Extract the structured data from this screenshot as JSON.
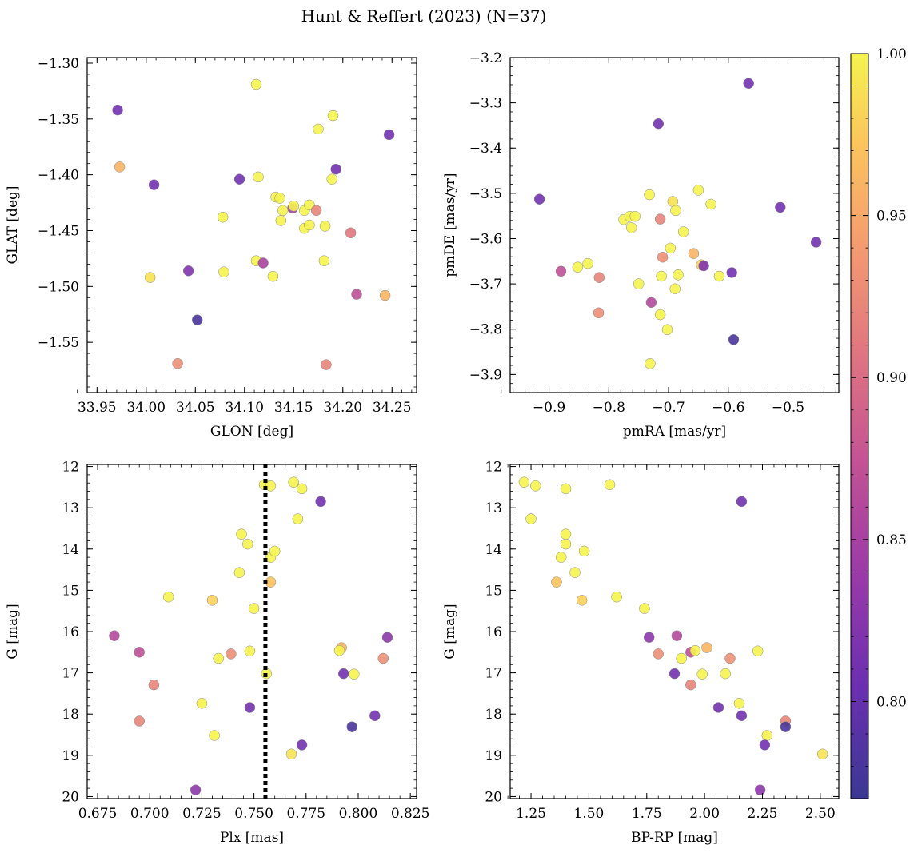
{
  "figure": {
    "title": "Hunt & Reffert (2023) (N=37)"
  },
  "colorbar": {
    "range": [
      0.77,
      1.0
    ],
    "ticks": [
      "0.80",
      "0.85",
      "0.90",
      "0.95",
      "1.00"
    ],
    "cmap": "plasma"
  },
  "chart_data": [
    {
      "type": "scatter",
      "xlabel": "GLON [deg]",
      "ylabel": "GLAT [deg]",
      "xlim": [
        33.94,
        34.275
      ],
      "ylim": [
        -1.595,
        -1.295
      ],
      "xticks": [
        "33.95",
        "34.00",
        "34.05",
        "34.10",
        "34.15",
        "34.20",
        "34.25"
      ],
      "yticks": [
        "-1.30",
        "-1.35",
        "-1.40",
        "-1.45",
        "-1.50",
        "-1.55"
      ],
      "points": [
        {
          "x": 33.971,
          "y": -1.342,
          "c": 0.81
        },
        {
          "x": 33.973,
          "y": -1.393,
          "c": 0.96
        },
        {
          "x": 34.008,
          "y": -1.409,
          "c": 0.81
        },
        {
          "x": 34.004,
          "y": -1.492,
          "c": 0.99
        },
        {
          "x": 34.043,
          "y": -1.486,
          "c": 0.82
        },
        {
          "x": 34.052,
          "y": -1.53,
          "c": 0.78
        },
        {
          "x": 34.032,
          "y": -1.569,
          "c": 0.93
        },
        {
          "x": 34.078,
          "y": -1.438,
          "c": 1.0
        },
        {
          "x": 34.079,
          "y": -1.487,
          "c": 1.0
        },
        {
          "x": 34.095,
          "y": -1.404,
          "c": 0.81
        },
        {
          "x": 34.112,
          "y": -1.319,
          "c": 1.0
        },
        {
          "x": 34.114,
          "y": -1.402,
          "c": 1.0
        },
        {
          "x": 34.112,
          "y": -1.477,
          "c": 1.0
        },
        {
          "x": 34.119,
          "y": -1.479,
          "c": 0.85
        },
        {
          "x": 34.129,
          "y": -1.491,
          "c": 1.0
        },
        {
          "x": 34.132,
          "y": -1.42,
          "c": 1.0
        },
        {
          "x": 34.136,
          "y": -1.421,
          "c": 1.0
        },
        {
          "x": 34.137,
          "y": -1.441,
          "c": 1.0
        },
        {
          "x": 34.139,
          "y": -1.432,
          "c": 1.0
        },
        {
          "x": 34.149,
          "y": -1.43,
          "c": 0.85
        },
        {
          "x": 34.15,
          "y": -1.428,
          "c": 1.0
        },
        {
          "x": 34.161,
          "y": -1.432,
          "c": 1.0
        },
        {
          "x": 34.161,
          "y": -1.448,
          "c": 1.0
        },
        {
          "x": 34.166,
          "y": -1.427,
          "c": 1.0
        },
        {
          "x": 34.166,
          "y": -1.445,
          "c": 1.0
        },
        {
          "x": 34.175,
          "y": -1.359,
          "c": 1.0
        },
        {
          "x": 34.173,
          "y": -1.432,
          "c": 0.92
        },
        {
          "x": 34.182,
          "y": -1.446,
          "c": 1.0
        },
        {
          "x": 34.181,
          "y": -1.477,
          "c": 1.0
        },
        {
          "x": 34.183,
          "y": -1.57,
          "c": 0.92
        },
        {
          "x": 34.19,
          "y": -1.347,
          "c": 1.0
        },
        {
          "x": 34.189,
          "y": -1.404,
          "c": 1.0
        },
        {
          "x": 34.193,
          "y": -1.395,
          "c": 0.81
        },
        {
          "x": 34.208,
          "y": -1.452,
          "c": 0.91
        },
        {
          "x": 34.214,
          "y": -1.507,
          "c": 0.87
        },
        {
          "x": 34.243,
          "y": -1.508,
          "c": 0.96
        },
        {
          "x": 34.247,
          "y": -1.364,
          "c": 0.81
        }
      ]
    },
    {
      "type": "scatter",
      "xlabel": "pmRA [mas/yr]",
      "ylabel": "pmDE [mas/yr]",
      "xlim": [
        -0.965,
        -0.415
      ],
      "ylim": [
        -3.94,
        -3.2
      ],
      "xticks": [
        "-0.9",
        "-0.8",
        "-0.7",
        "-0.6",
        "-0.5"
      ],
      "yticks": [
        "-3.2",
        "-3.3",
        "-3.4",
        "-3.5",
        "-3.6",
        "-3.7",
        "-3.8",
        "-3.9"
      ],
      "points": [
        {
          "x": -0.916,
          "y": -3.513,
          "c": 0.81
        },
        {
          "x": -0.88,
          "y": -3.672,
          "c": 0.87
        },
        {
          "x": -0.852,
          "y": -3.663,
          "c": 1.0
        },
        {
          "x": -0.835,
          "y": -3.655,
          "c": 1.0
        },
        {
          "x": -0.816,
          "y": -3.686,
          "c": 0.92
        },
        {
          "x": -0.817,
          "y": -3.764,
          "c": 0.93
        },
        {
          "x": -0.775,
          "y": -3.558,
          "c": 1.0
        },
        {
          "x": -0.765,
          "y": -3.551,
          "c": 1.0
        },
        {
          "x": -0.756,
          "y": -3.551,
          "c": 1.0
        },
        {
          "x": -0.762,
          "y": -3.576,
          "c": 1.0
        },
        {
          "x": -0.75,
          "y": -3.7,
          "c": 1.0
        },
        {
          "x": -0.732,
          "y": -3.503,
          "c": 1.0
        },
        {
          "x": -0.729,
          "y": -3.741,
          "c": 0.86
        },
        {
          "x": -0.731,
          "y": -3.876,
          "c": 1.0
        },
        {
          "x": -0.717,
          "y": -3.346,
          "c": 0.81
        },
        {
          "x": -0.714,
          "y": -3.557,
          "c": 0.92
        },
        {
          "x": -0.71,
          "y": -3.641,
          "c": 0.93
        },
        {
          "x": -0.712,
          "y": -3.683,
          "c": 1.0
        },
        {
          "x": -0.714,
          "y": -3.768,
          "c": 1.0
        },
        {
          "x": -0.702,
          "y": -3.801,
          "c": 1.0
        },
        {
          "x": -0.697,
          "y": -3.621,
          "c": 1.0
        },
        {
          "x": -0.693,
          "y": -3.518,
          "c": 0.99
        },
        {
          "x": -0.688,
          "y": -3.538,
          "c": 1.0
        },
        {
          "x": -0.689,
          "y": -3.711,
          "c": 1.0
        },
        {
          "x": -0.684,
          "y": -3.68,
          "c": 1.0
        },
        {
          "x": -0.675,
          "y": -3.585,
          "c": 1.0
        },
        {
          "x": -0.658,
          "y": -3.633,
          "c": 0.96
        },
        {
          "x": -0.65,
          "y": -3.493,
          "c": 1.0
        },
        {
          "x": -0.645,
          "y": -3.658,
          "c": 0.98
        },
        {
          "x": -0.641,
          "y": -3.66,
          "c": 0.82
        },
        {
          "x": -0.629,
          "y": -3.524,
          "c": 1.0
        },
        {
          "x": -0.615,
          "y": -3.683,
          "c": 1.0
        },
        {
          "x": -0.594,
          "y": -3.675,
          "c": 0.81
        },
        {
          "x": -0.591,
          "y": -3.823,
          "c": 0.78
        },
        {
          "x": -0.566,
          "y": -3.257,
          "c": 0.81
        },
        {
          "x": -0.513,
          "y": -3.531,
          "c": 0.81
        },
        {
          "x": -0.453,
          "y": -3.608,
          "c": 0.81
        }
      ]
    },
    {
      "type": "scatter",
      "xlabel": "Plx [mas]",
      "ylabel": "G [mag]",
      "xlim": [
        0.67,
        0.828
      ],
      "ylim": [
        20.05,
        11.95
      ],
      "yinverted": true,
      "xticks": [
        "0.675",
        "0.700",
        "0.725",
        "0.750",
        "0.775",
        "0.800",
        "0.825"
      ],
      "yticks": [
        "12",
        "13",
        "14",
        "15",
        "16",
        "17",
        "18",
        "19",
        "20"
      ],
      "vline": 0.7555,
      "points": [
        {
          "x": 0.683,
          "y": 16.1,
          "c": 0.86
        },
        {
          "x": 0.695,
          "y": 16.5,
          "c": 0.87
        },
        {
          "x": 0.695,
          "y": 18.17,
          "c": 0.92
        },
        {
          "x": 0.702,
          "y": 17.29,
          "c": 0.92
        },
        {
          "x": 0.709,
          "y": 15.16,
          "c": 1.0
        },
        {
          "x": 0.722,
          "y": 19.84,
          "c": 0.83
        },
        {
          "x": 0.725,
          "y": 17.74,
          "c": 1.0
        },
        {
          "x": 0.73,
          "y": 15.24,
          "c": 0.98
        },
        {
          "x": 0.731,
          "y": 18.52,
          "c": 1.0
        },
        {
          "x": 0.733,
          "y": 16.65,
          "c": 1.0
        },
        {
          "x": 0.739,
          "y": 16.54,
          "c": 0.93
        },
        {
          "x": 0.743,
          "y": 14.57,
          "c": 1.0
        },
        {
          "x": 0.744,
          "y": 13.64,
          "c": 1.0
        },
        {
          "x": 0.747,
          "y": 13.88,
          "c": 1.0
        },
        {
          "x": 0.748,
          "y": 16.47,
          "c": 1.0
        },
        {
          "x": 0.748,
          "y": 17.84,
          "c": 0.81
        },
        {
          "x": 0.75,
          "y": 15.44,
          "c": 1.0
        },
        {
          "x": 0.755,
          "y": 12.44,
          "c": 1.0
        },
        {
          "x": 0.756,
          "y": 17.02,
          "c": 1.0
        },
        {
          "x": 0.758,
          "y": 12.47,
          "c": 1.0
        },
        {
          "x": 0.758,
          "y": 14.2,
          "c": 1.0
        },
        {
          "x": 0.758,
          "y": 14.8,
          "c": 0.97
        },
        {
          "x": 0.76,
          "y": 14.05,
          "c": 1.0
        },
        {
          "x": 0.769,
          "y": 12.38,
          "c": 1.0
        },
        {
          "x": 0.768,
          "y": 18.97,
          "c": 0.99
        },
        {
          "x": 0.771,
          "y": 13.27,
          "c": 1.0
        },
        {
          "x": 0.773,
          "y": 12.54,
          "c": 1.0
        },
        {
          "x": 0.773,
          "y": 18.75,
          "c": 0.81
        },
        {
          "x": 0.782,
          "y": 12.85,
          "c": 0.81
        },
        {
          "x": 0.792,
          "y": 16.39,
          "c": 0.96
        },
        {
          "x": 0.791,
          "y": 16.46,
          "c": 1.0
        },
        {
          "x": 0.793,
          "y": 17.02,
          "c": 0.81
        },
        {
          "x": 0.797,
          "y": 18.31,
          "c": 0.78
        },
        {
          "x": 0.798,
          "y": 17.03,
          "c": 1.0
        },
        {
          "x": 0.808,
          "y": 18.04,
          "c": 0.81
        },
        {
          "x": 0.812,
          "y": 16.65,
          "c": 0.93
        },
        {
          "x": 0.814,
          "y": 16.14,
          "c": 0.83
        }
      ]
    },
    {
      "type": "scatter",
      "xlabel": "BP-RP [mag]",
      "ylabel": "G [mag]",
      "xlim": [
        1.16,
        2.58
      ],
      "ylim": [
        20.05,
        11.95
      ],
      "yinverted": true,
      "xticks": [
        "1.25",
        "1.50",
        "1.75",
        "2.00",
        "2.25",
        "2.50"
      ],
      "yticks": [
        "12",
        "13",
        "14",
        "15",
        "16",
        "17",
        "18",
        "19",
        "20"
      ],
      "points": [
        {
          "x": 1.22,
          "y": 12.38,
          "c": 1.0
        },
        {
          "x": 1.27,
          "y": 12.47,
          "c": 1.0
        },
        {
          "x": 1.25,
          "y": 13.27,
          "c": 1.0
        },
        {
          "x": 1.4,
          "y": 12.54,
          "c": 1.0
        },
        {
          "x": 1.59,
          "y": 12.44,
          "c": 1.0
        },
        {
          "x": 1.4,
          "y": 13.64,
          "c": 1.0
        },
        {
          "x": 1.4,
          "y": 13.88,
          "c": 1.0
        },
        {
          "x": 1.48,
          "y": 14.05,
          "c": 1.0
        },
        {
          "x": 1.38,
          "y": 14.2,
          "c": 1.0
        },
        {
          "x": 1.44,
          "y": 14.57,
          "c": 1.0
        },
        {
          "x": 1.36,
          "y": 14.8,
          "c": 0.97
        },
        {
          "x": 1.62,
          "y": 15.16,
          "c": 1.0
        },
        {
          "x": 1.47,
          "y": 15.24,
          "c": 0.98
        },
        {
          "x": 1.74,
          "y": 15.44,
          "c": 1.0
        },
        {
          "x": 1.76,
          "y": 16.14,
          "c": 0.83
        },
        {
          "x": 1.88,
          "y": 16.1,
          "c": 0.86
        },
        {
          "x": 1.94,
          "y": 16.5,
          "c": 0.87
        },
        {
          "x": 1.96,
          "y": 16.46,
          "c": 1.0
        },
        {
          "x": 2.01,
          "y": 16.39,
          "c": 0.96
        },
        {
          "x": 2.23,
          "y": 16.47,
          "c": 1.0
        },
        {
          "x": 1.8,
          "y": 16.54,
          "c": 0.93
        },
        {
          "x": 1.9,
          "y": 16.65,
          "c": 1.0
        },
        {
          "x": 2.11,
          "y": 16.65,
          "c": 0.93
        },
        {
          "x": 1.87,
          "y": 17.02,
          "c": 0.81
        },
        {
          "x": 1.99,
          "y": 17.03,
          "c": 1.0
        },
        {
          "x": 2.09,
          "y": 17.02,
          "c": 1.0
        },
        {
          "x": 1.94,
          "y": 17.29,
          "c": 0.92
        },
        {
          "x": 2.06,
          "y": 17.84,
          "c": 0.81
        },
        {
          "x": 2.15,
          "y": 17.74,
          "c": 1.0
        },
        {
          "x": 2.16,
          "y": 18.04,
          "c": 0.81
        },
        {
          "x": 2.35,
          "y": 18.17,
          "c": 0.92
        },
        {
          "x": 2.35,
          "y": 18.31,
          "c": 0.78
        },
        {
          "x": 2.27,
          "y": 18.52,
          "c": 1.0
        },
        {
          "x": 2.26,
          "y": 18.75,
          "c": 0.81
        },
        {
          "x": 2.51,
          "y": 18.97,
          "c": 0.99
        },
        {
          "x": 2.24,
          "y": 19.84,
          "c": 0.83
        },
        {
          "x": 2.16,
          "y": 12.85,
          "c": 0.81
        }
      ]
    }
  ]
}
